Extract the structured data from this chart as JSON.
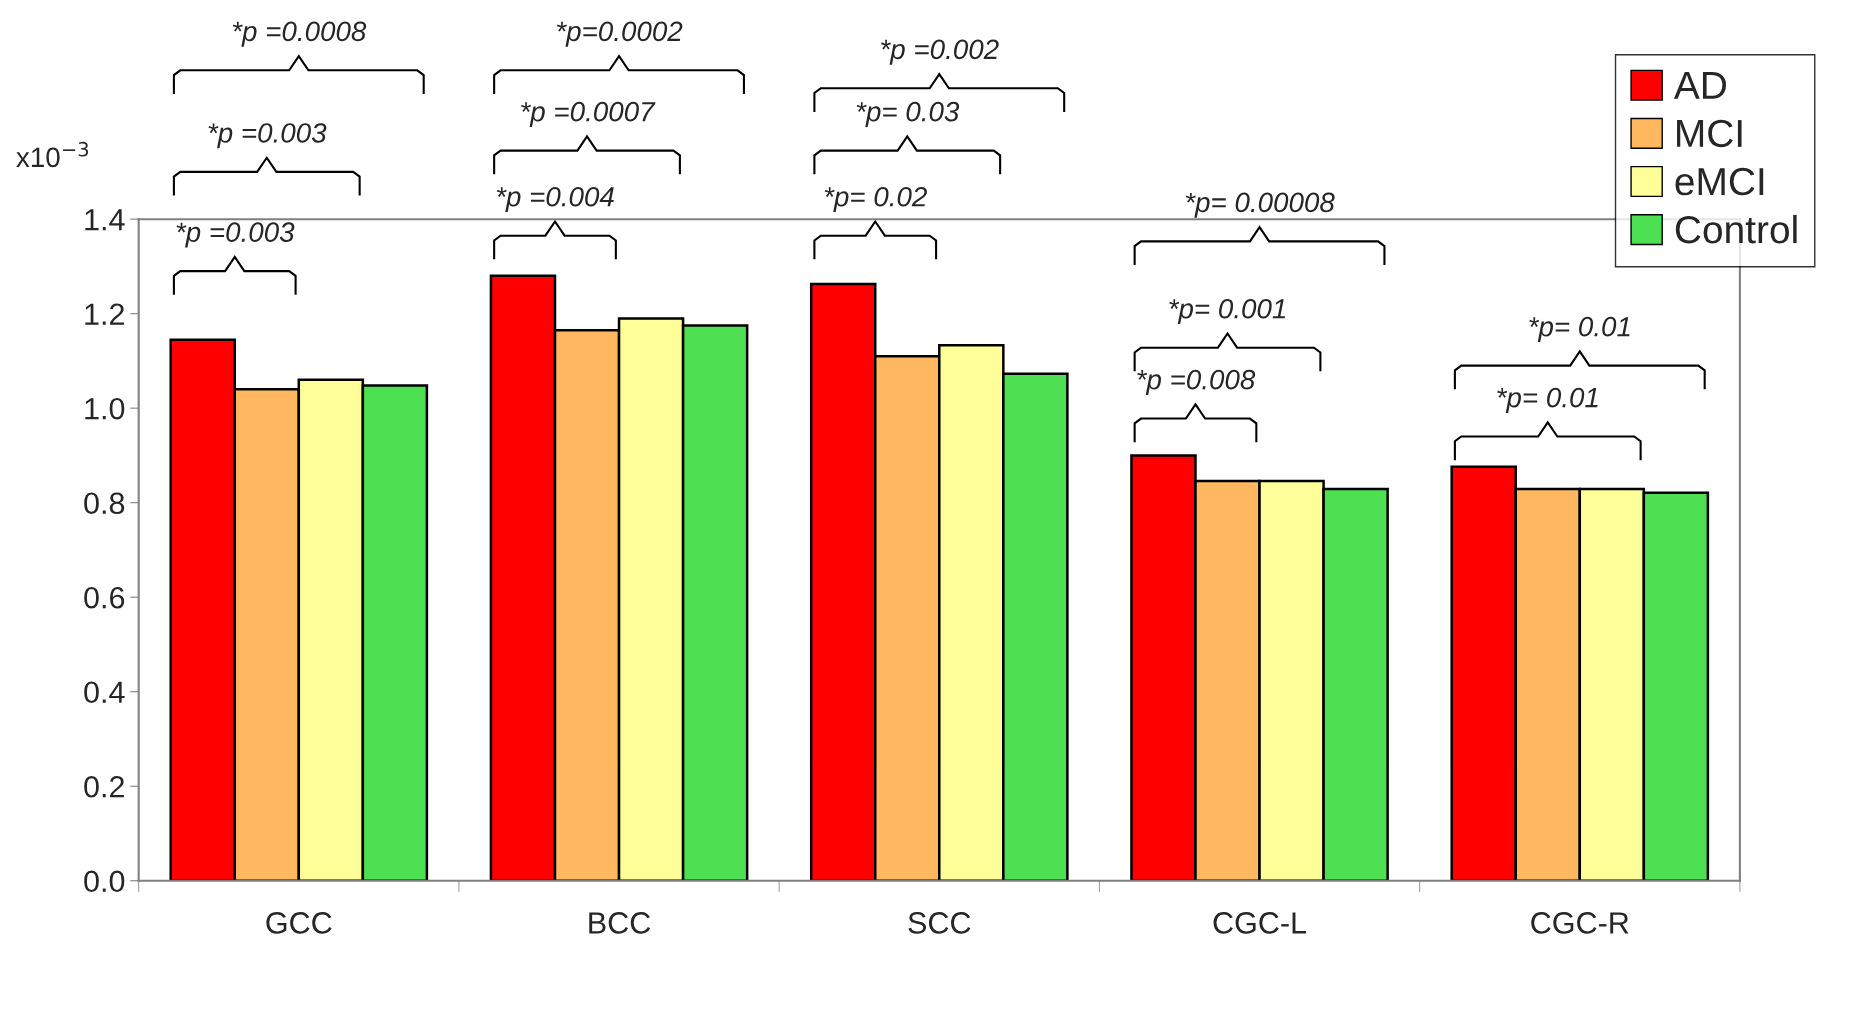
{
  "chart_data": {
    "type": "bar",
    "categories": [
      "GCC",
      "BCC",
      "SCC",
      "CGC-L",
      "CGC-R"
    ],
    "series": [
      {
        "name": "AD",
        "color": "#ff0000",
        "values": [
          1.145,
          1.28,
          1.263,
          0.9,
          0.876
        ]
      },
      {
        "name": "MCI",
        "color": "#ffb860",
        "values": [
          1.04,
          1.165,
          1.11,
          0.846,
          0.829
        ]
      },
      {
        "name": "eMCI",
        "color": "#ffff99",
        "values": [
          1.06,
          1.19,
          1.133,
          0.846,
          0.829
        ]
      },
      {
        "name": "Control",
        "color": "#4ce052",
        "values": [
          1.048,
          1.175,
          1.073,
          0.829,
          0.821
        ]
      }
    ],
    "ylabel": "x10$^{−3}$",
    "ylim": [
      0,
      1.4
    ],
    "yticks": [
      {
        "value": 0,
        "label": "0.0"
      },
      0.2,
      0.4,
      0.6,
      0.8,
      {
        "value": 1,
        "label": "1.0"
      },
      1.2,
      1.4
    ],
    "annotations": [
      "*p =0.0008",
      "*p =0.003",
      "*p =0.003",
      "*p=0.0002",
      "*p =0.0007",
      "*p =0.004",
      "*p =0.002",
      "*p= 0.03",
      "*p= 0.02",
      "*p= 0.00008",
      "*p= 0.001",
      "*p =0.008",
      "*p= 0.01",
      "*p= 0.01"
    ],
    "legend": "top right",
    "grid": false
  }
}
